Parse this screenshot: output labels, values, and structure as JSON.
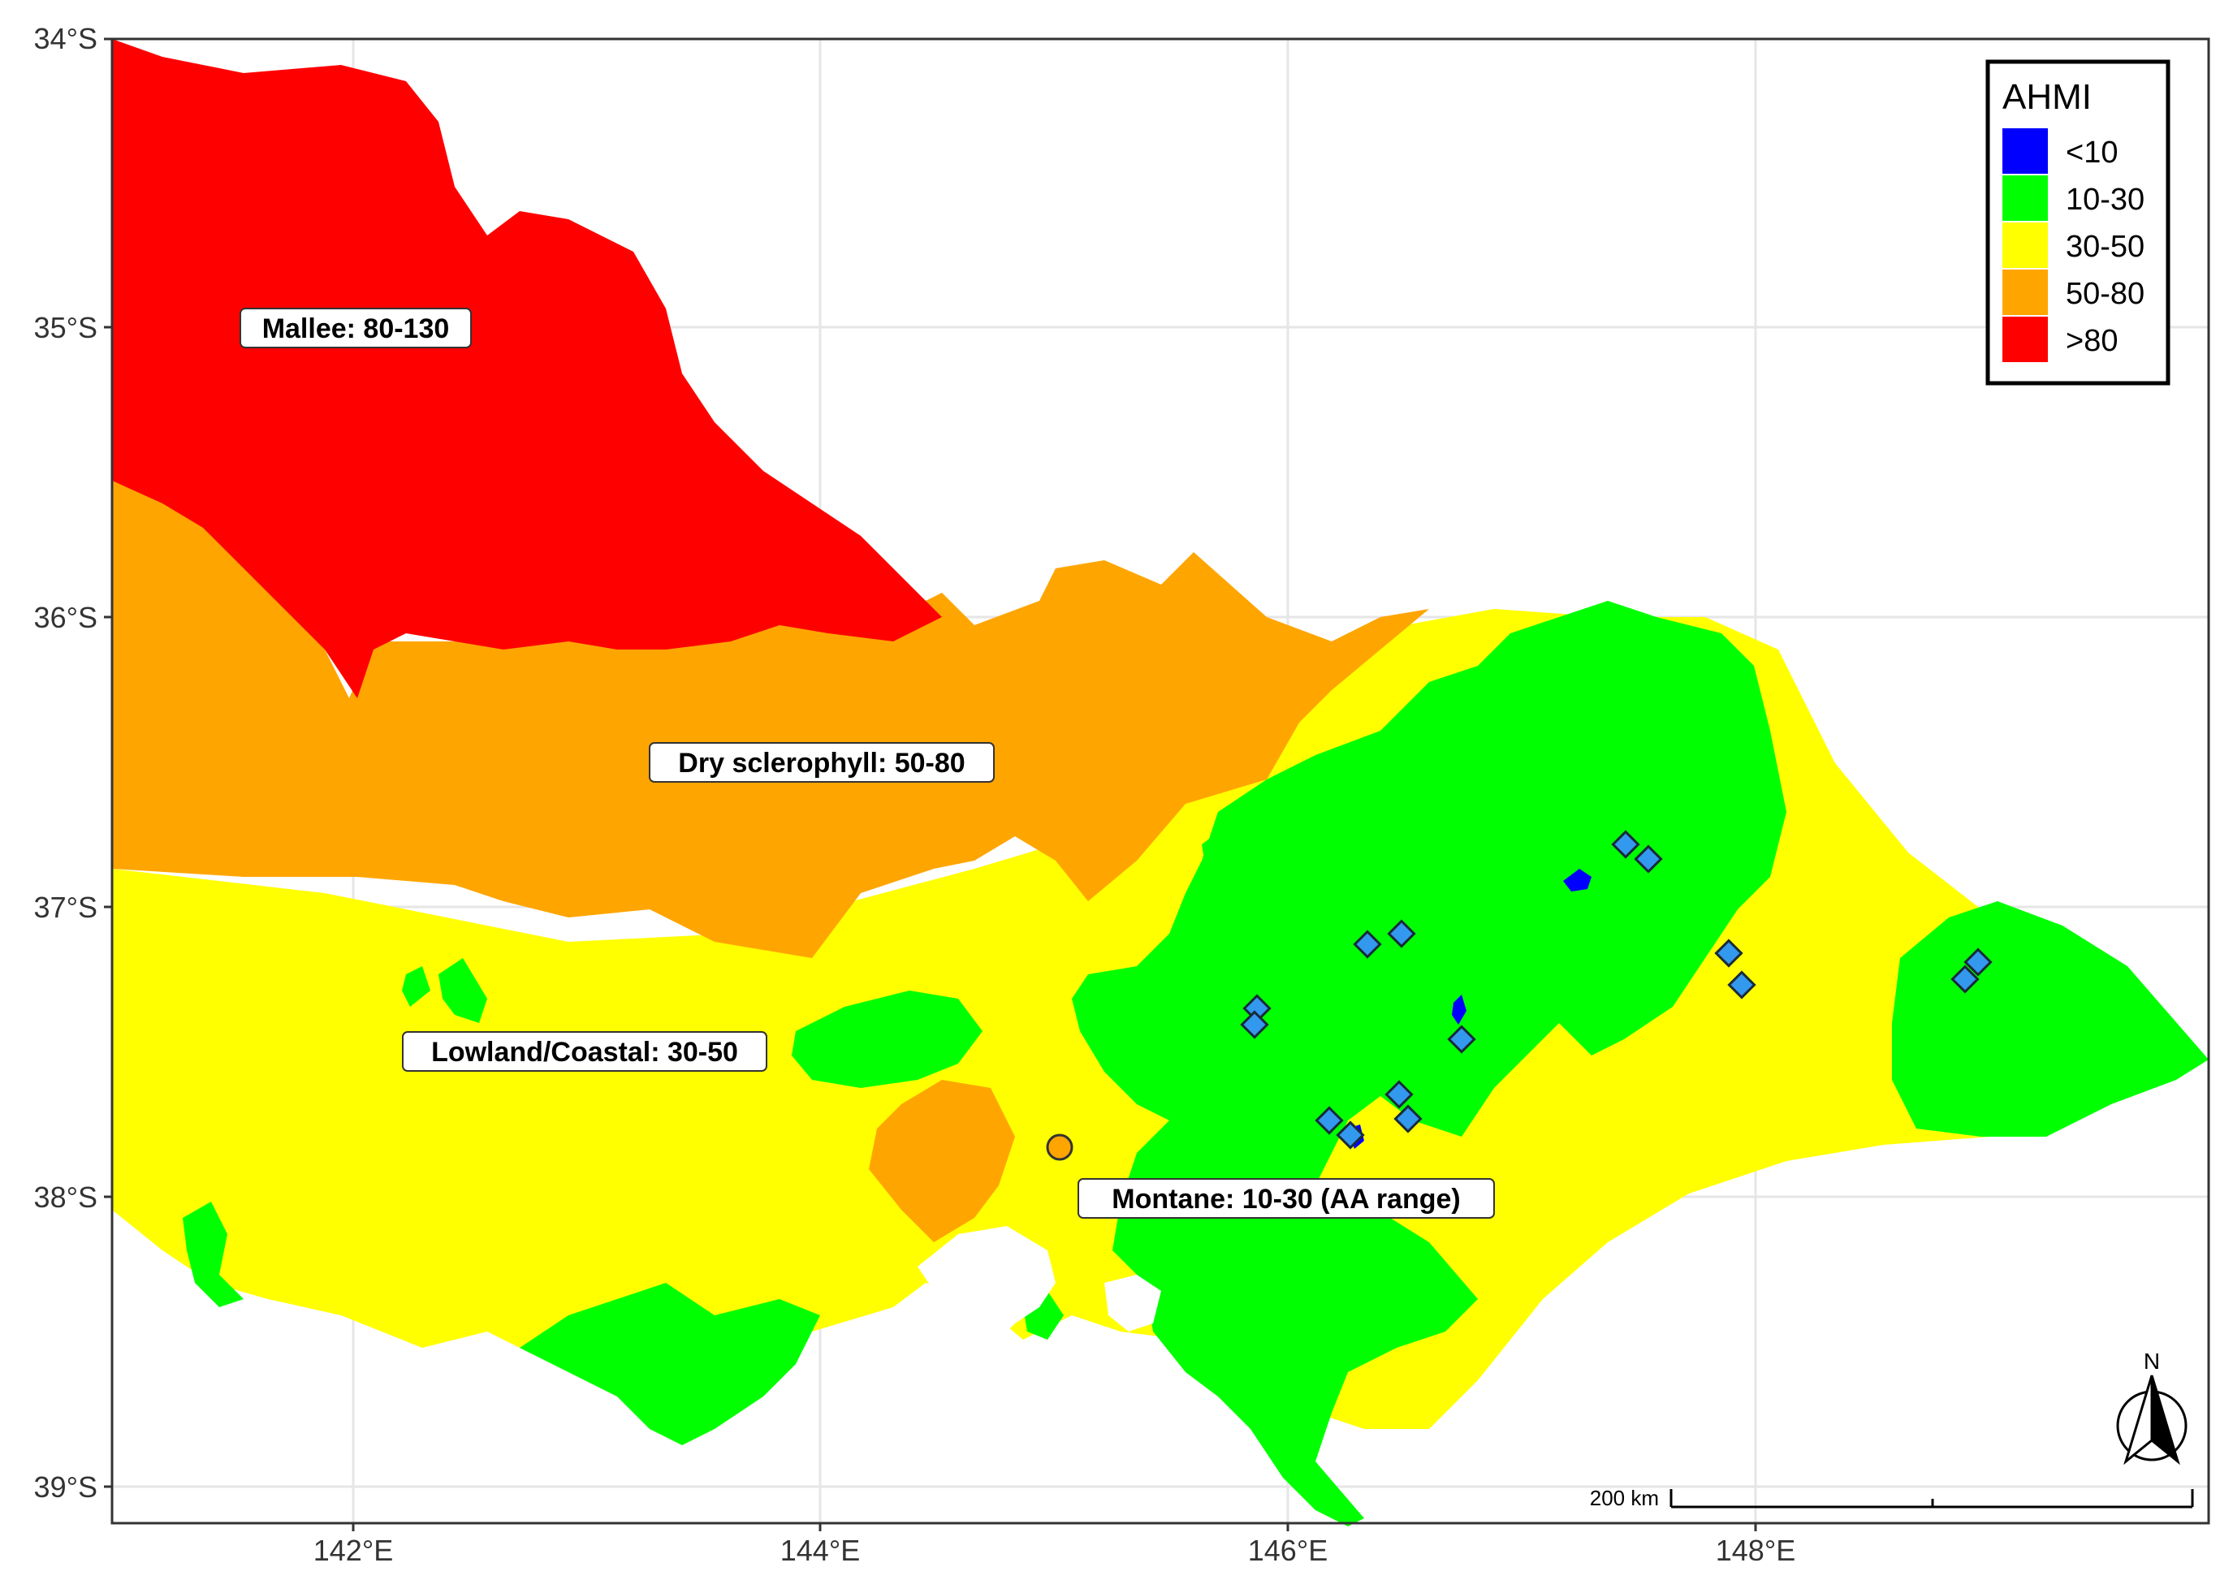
{
  "map": {
    "axes": {
      "y_ticks": [
        "34°S",
        "35°S",
        "36°S",
        "37°S",
        "38°S",
        "39°S"
      ],
      "x_ticks": [
        "142°E",
        "144°E",
        "146°E",
        "148°E"
      ]
    },
    "legend": {
      "title": "AHMI",
      "items": [
        {
          "label": "<10",
          "color": "#0000FF"
        },
        {
          "label": "10-30",
          "color": "#00FF00"
        },
        {
          "label": "30-50",
          "color": "#FFFF00"
        },
        {
          "label": "50-80",
          "color": "#FFA500"
        },
        {
          "label": ">80",
          "color": "#FF0000"
        }
      ]
    },
    "region_labels": [
      "Mallee: 80-130",
      "Dry sclerophyll: 50-80",
      "Lowland/Coastal: 30-50",
      "Montane: 10-30 (AA range)"
    ],
    "scale_bar": {
      "label": "200 km"
    },
    "north_arrow": {
      "label": "N"
    },
    "markers": {
      "site_color": "#3399EE",
      "reference_color": "#FFA500"
    }
  }
}
